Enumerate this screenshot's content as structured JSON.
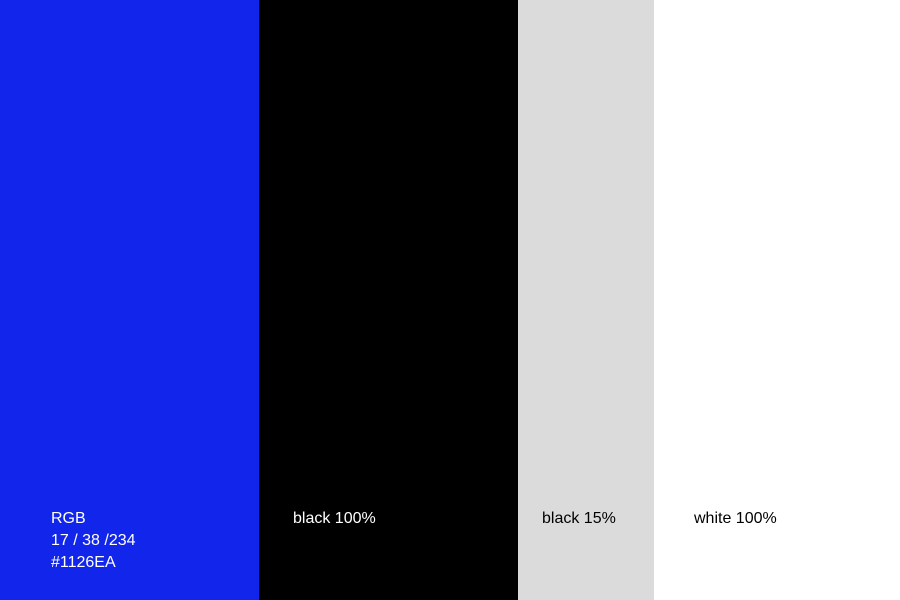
{
  "swatches": [
    {
      "name": "blue",
      "color": "#1126EA",
      "lines": [
        "RGB",
        "17 / 38 /234",
        "#1126EA"
      ]
    },
    {
      "name": "black",
      "color": "#000000",
      "lines": [
        "black 100%"
      ]
    },
    {
      "name": "light-grey",
      "color": "#DBDBDB",
      "lines": [
        "black 15%"
      ]
    },
    {
      "name": "white",
      "color": "#FFFFFF",
      "lines": [
        "white 100%"
      ]
    }
  ]
}
